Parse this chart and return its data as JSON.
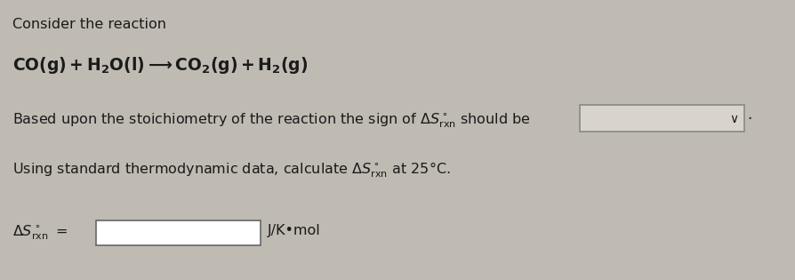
{
  "background_color": "#bfbbb3",
  "line1": "Consider the reaction",
  "line5_unit": "J/K•mol",
  "font_color": "#1a1a1a",
  "box_fill": "#d8d4cc",
  "box_fill_white": "#ffffff",
  "box_border": "#666666",
  "dropdown_border": "#888888",
  "figsize": [
    8.94,
    3.15
  ],
  "dpi": 100
}
